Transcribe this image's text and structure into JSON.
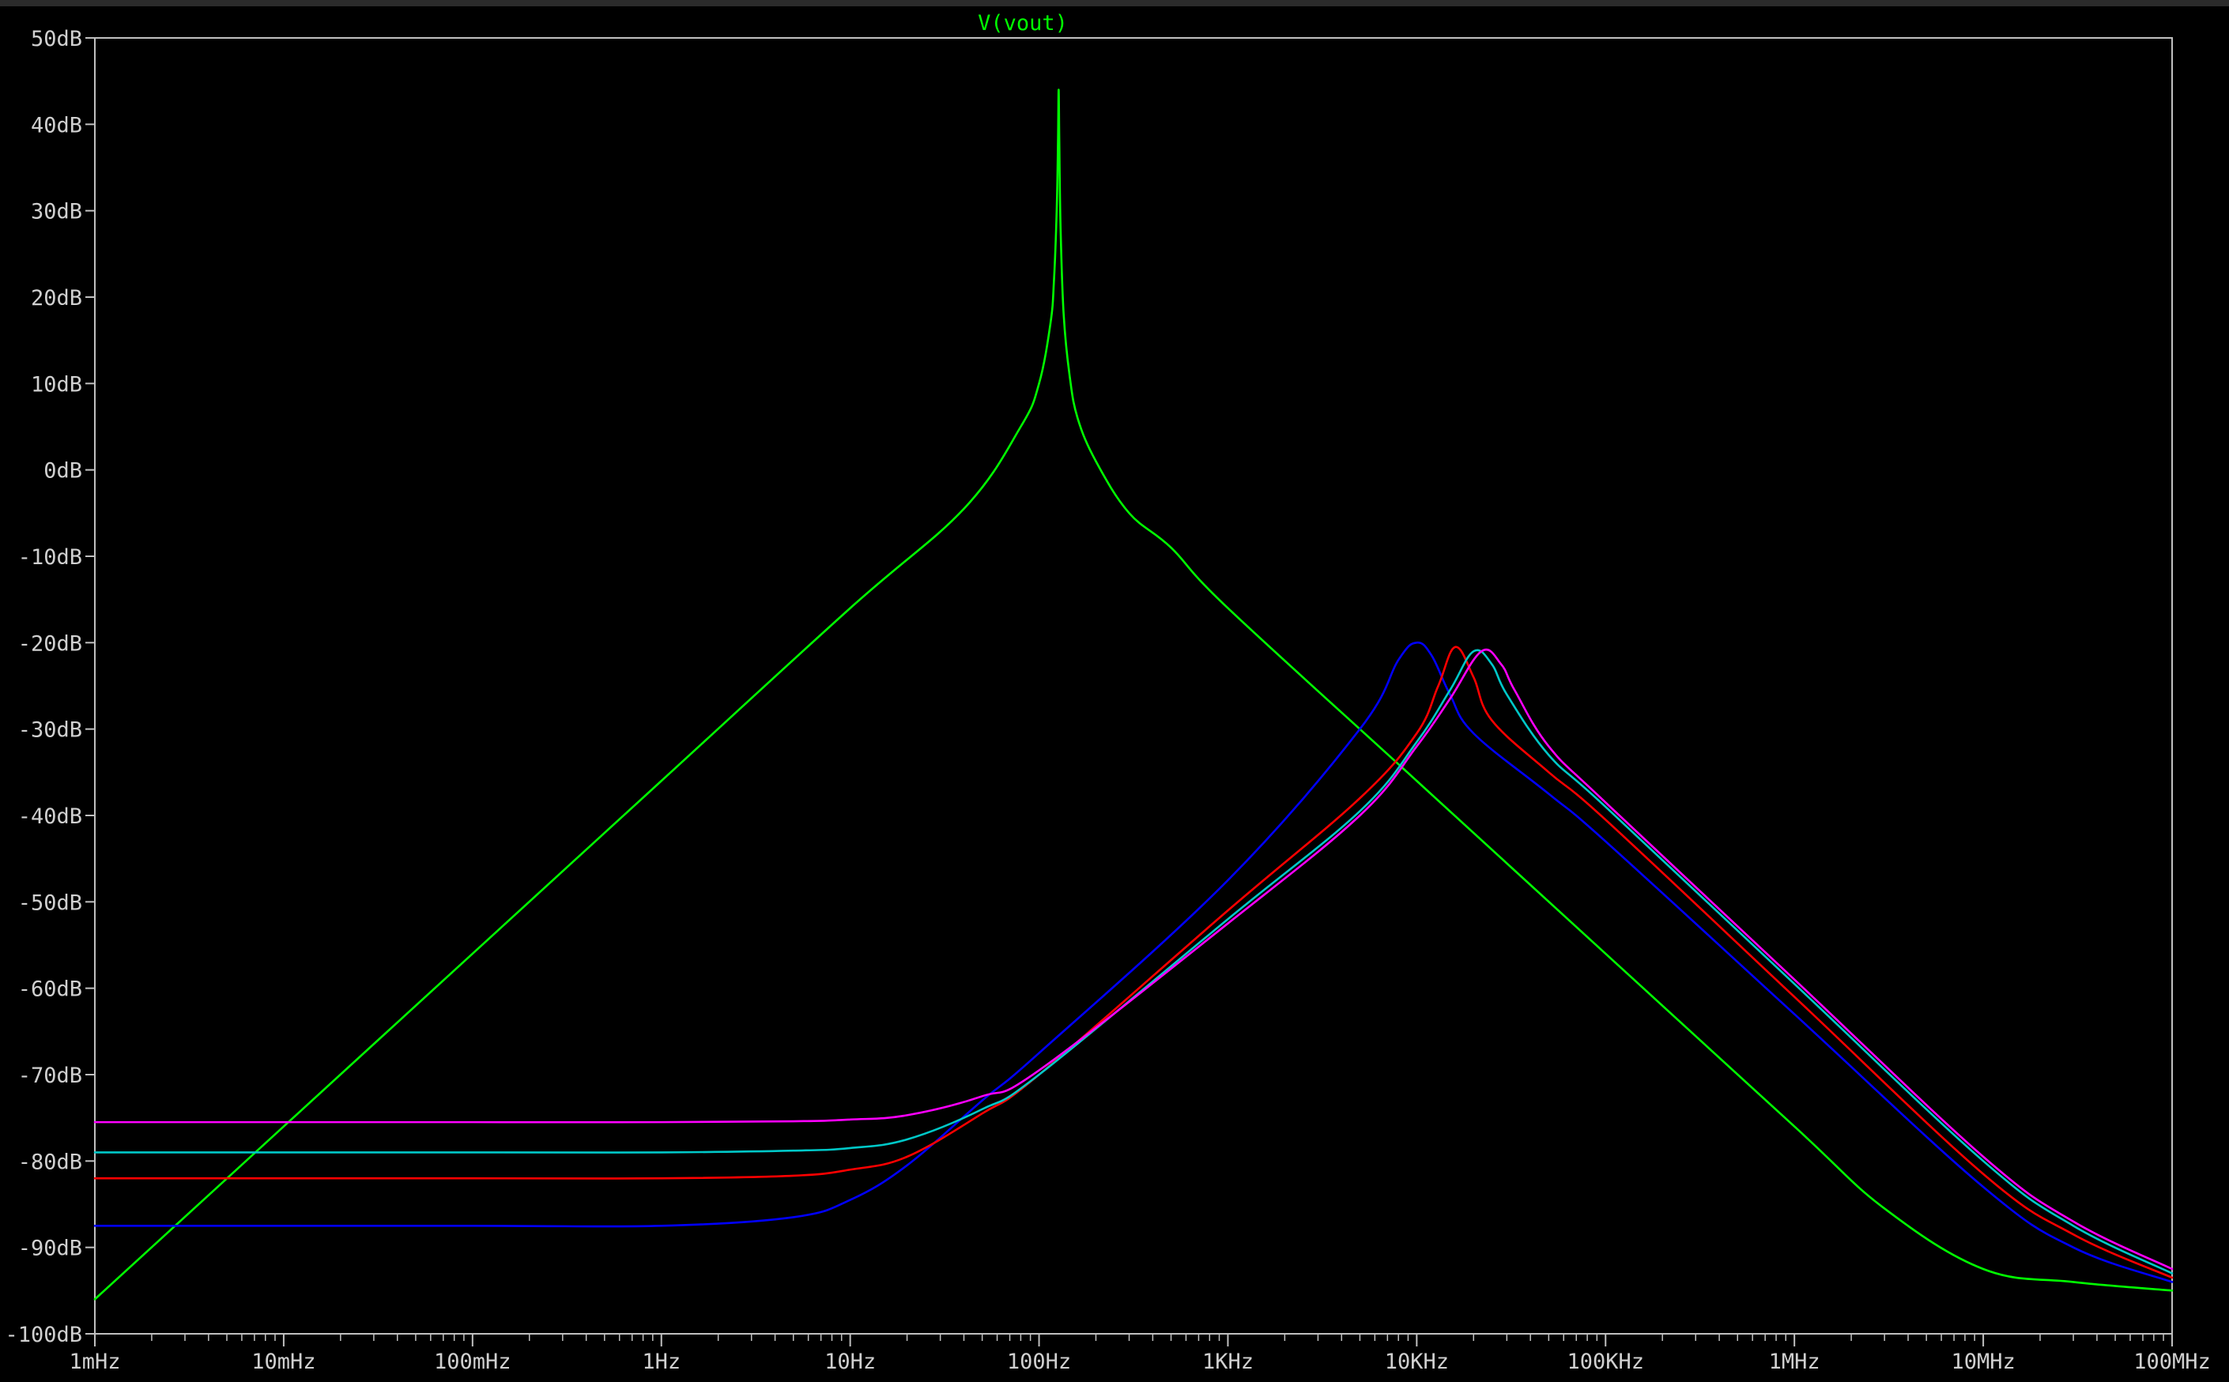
{
  "chart_data": {
    "type": "line",
    "title": "V(vout)",
    "title_color": "#00ff00",
    "background": "#000000",
    "axis_color": "#c0c0c0",
    "text_color": "#d0d0d0",
    "x_scale": "log",
    "xlim": [
      0.001,
      100000000
    ],
    "ylim": [
      -100,
      50
    ],
    "x_ticks": [
      {
        "value": 0.001,
        "label": "1mHz"
      },
      {
        "value": 0.01,
        "label": "10mHz"
      },
      {
        "value": 0.1,
        "label": "100mHz"
      },
      {
        "value": 1,
        "label": "1Hz"
      },
      {
        "value": 10,
        "label": "10Hz"
      },
      {
        "value": 100,
        "label": "100Hz"
      },
      {
        "value": 1000,
        "label": "1KHz"
      },
      {
        "value": 10000,
        "label": "10KHz"
      },
      {
        "value": 100000,
        "label": "100KHz"
      },
      {
        "value": 1000000,
        "label": "1MHz"
      },
      {
        "value": 10000000,
        "label": "10MHz"
      },
      {
        "value": 100000000,
        "label": "100MHz"
      }
    ],
    "y_ticks": [
      {
        "value": 50,
        "label": "50dB"
      },
      {
        "value": 40,
        "label": "40dB"
      },
      {
        "value": 30,
        "label": "30dB"
      },
      {
        "value": 20,
        "label": "20dB"
      },
      {
        "value": 10,
        "label": "10dB"
      },
      {
        "value": 0,
        "label": "0dB"
      },
      {
        "value": -10,
        "label": "-10dB"
      },
      {
        "value": -20,
        "label": "-20dB"
      },
      {
        "value": -30,
        "label": "-30dB"
      },
      {
        "value": -40,
        "label": "-40dB"
      },
      {
        "value": -50,
        "label": "-50dB"
      },
      {
        "value": -60,
        "label": "-60dB"
      },
      {
        "value": -70,
        "label": "-70dB"
      },
      {
        "value": -80,
        "label": "-80dB"
      },
      {
        "value": -90,
        "label": "-90dB"
      },
      {
        "value": -100,
        "label": "-100dB"
      }
    ],
    "series": [
      {
        "color": "#00ff00",
        "x": [
          0.001,
          0.01,
          0.1,
          1,
          10,
          40,
          80,
          100,
          115,
          120,
          124,
          126,
          127,
          128,
          130,
          135,
          145,
          160,
          200,
          300,
          500,
          1000,
          10000,
          100000,
          1000000,
          3000000,
          10000000,
          30000000,
          100000000
        ],
        "y": [
          -96,
          -76,
          -56,
          -36,
          -16,
          -4.5,
          5,
          10,
          17,
          22,
          30,
          38,
          44,
          38,
          28,
          18,
          11,
          6,
          1,
          -5,
          -9,
          -16,
          -36,
          -56,
          -76,
          -85.5,
          -92.5,
          -94,
          -95
        ]
      },
      {
        "color": "#0000ff",
        "x": [
          0.001,
          0.1,
          1,
          5,
          10,
          20,
          50,
          100,
          1000,
          5000,
          8000,
          10000,
          12000,
          15000,
          20000,
          50000,
          100000,
          1000000,
          10000000,
          30000000,
          100000000
        ],
        "y": [
          -87.5,
          -87.5,
          -87.5,
          -86.5,
          -84.5,
          -80.5,
          -73,
          -67.5,
          -47.5,
          -30,
          -22,
          -20,
          -21.5,
          -26,
          -30.5,
          -37.5,
          -43,
          -63,
          -83,
          -90,
          -94
        ]
      },
      {
        "color": "#ff0000",
        "x": [
          0.001,
          0.1,
          1,
          5,
          10,
          20,
          50,
          100,
          1000,
          5000,
          10000,
          13000,
          16000,
          20000,
          25000,
          50000,
          100000,
          1000000,
          10000000,
          30000000,
          100000000
        ],
        "y": [
          -82,
          -82,
          -82,
          -81.7,
          -81,
          -79.5,
          -74.5,
          -70,
          -51,
          -38,
          -30.5,
          -25,
          -20.5,
          -24,
          -29,
          -35,
          -40.5,
          -61,
          -81.5,
          -88.5,
          -93.5
        ]
      },
      {
        "color": "#00c8c8",
        "x": [
          0.001,
          0.1,
          1,
          5,
          10,
          20,
          50,
          100,
          1000,
          5000,
          10000,
          15000,
          20000,
          25000,
          30000,
          50000,
          100000,
          1000000,
          10000000,
          30000000,
          100000000
        ],
        "y": [
          -79,
          -79,
          -79,
          -78.8,
          -78.5,
          -77.5,
          -74,
          -70,
          -52,
          -39.5,
          -31.5,
          -25.5,
          -21,
          -22.5,
          -26,
          -33,
          -39,
          -59.5,
          -80,
          -87.5,
          -93
        ]
      },
      {
        "color": "#ff00ff",
        "x": [
          0.001,
          0.1,
          1,
          5,
          10,
          20,
          50,
          100,
          1000,
          5000,
          10000,
          15000,
          22000,
          28000,
          33000,
          50000,
          100000,
          1000000,
          10000000,
          30000000,
          100000000
        ],
        "y": [
          -75.5,
          -75.5,
          -75.5,
          -75.4,
          -75.2,
          -74.7,
          -72.5,
          -69.5,
          -52.5,
          -40,
          -32,
          -26.5,
          -21,
          -22.5,
          -25.5,
          -32,
          -38.5,
          -59,
          -79.5,
          -87,
          -92.5
        ]
      }
    ]
  }
}
